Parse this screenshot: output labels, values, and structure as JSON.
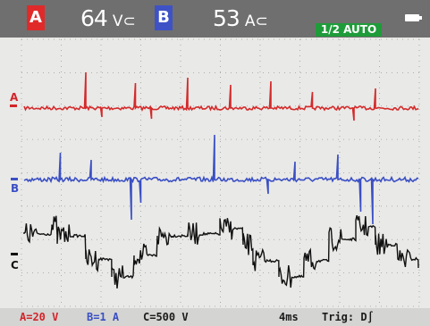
{
  "header": {
    "channel_a": {
      "label": "A",
      "value": "64",
      "unit": "V⊂",
      "color": "#e02a2a"
    },
    "channel_b": {
      "label": "B",
      "value": "53",
      "unit": "A⊂",
      "color": "#3e52c6"
    },
    "mode": "1/2 AUTO",
    "status_icon": "battery-icon"
  },
  "markers": {
    "a": "A",
    "b": "B",
    "c": "C"
  },
  "footer": {
    "a_scale": "A=20 V",
    "b_scale": "B=1 A",
    "c_scale": "C=500 V",
    "timebase": "4ms",
    "trigger": "Trig: D∫"
  },
  "colors": {
    "trace_a": "#d42a2a",
    "trace_b": "#3a4fc4",
    "trace_c": "#111111",
    "grid": "#9a9a9a",
    "screen_bg": "#e9e9e7"
  },
  "grid": {
    "divisions_x": 10,
    "divisions_y": 8
  }
}
